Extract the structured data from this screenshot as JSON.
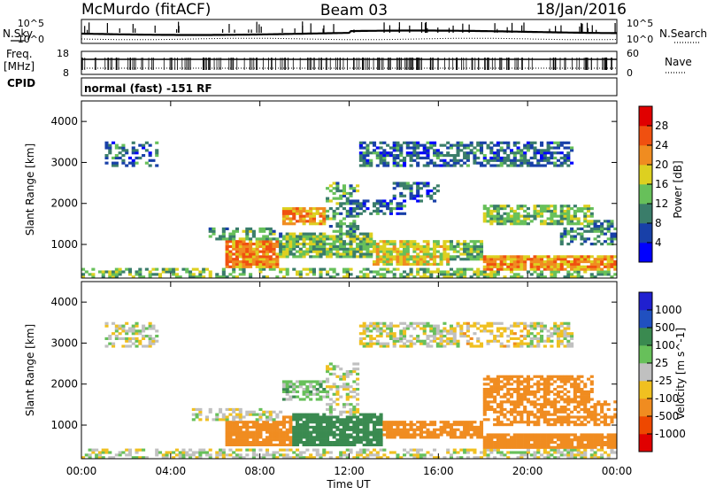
{
  "header": {
    "title_left": "McMurdo (fitACF)",
    "title_center": "Beam 03",
    "title_right": "18/Jan/2016"
  },
  "top_panels": {
    "nsky_label": "N.Sky",
    "nsearch_label": "N.Search",
    "freq_label_line1": "Freq.",
    "freq_label_line2": "[MHz]",
    "nave_label": "Nave",
    "cpid_label": "CPID",
    "cpid_text": "normal (fast) -151 RF",
    "noise_ticks_left": [
      "10^5",
      "10^0"
    ],
    "noise_ticks_right": [
      "10^5",
      "10^0"
    ],
    "freq_ticks": [
      "18",
      "8"
    ],
    "nave_ticks": [
      "60",
      "0"
    ]
  },
  "axes": {
    "xlabel": "Time UT",
    "x_ticks": [
      "00:00",
      "04:00",
      "08:00",
      "12:00",
      "16:00",
      "20:00",
      "00:00"
    ],
    "ylabel": "Slant Range [km]",
    "y_ticks": [
      "1000",
      "2000",
      "3000",
      "4000"
    ]
  },
  "colors": {
    "power": [
      "#0000ff",
      "#1840a8",
      "#3a7d6a",
      "#67c05a",
      "#ddd020",
      "#f08c20",
      "#f05010",
      "#e00000"
    ],
    "velocity": [
      "#e00000",
      "#ee4800",
      "#f08c20",
      "#f0c020",
      "#c0c0c0",
      "#67c05a",
      "#3a8a50",
      "#2050c0",
      "#2020d0"
    ]
  },
  "chart_data": [
    {
      "type": "heatmap",
      "title": "",
      "quantity": "Power",
      "colorbar_label": "Power [dB]",
      "colorbar_ticks": [
        "4",
        "8",
        "12",
        "16",
        "20",
        "24",
        "28"
      ],
      "xlabel": "",
      "ylabel": "Slant Range [km]",
      "x_range_hours": [
        0,
        24
      ],
      "y_range_km": [
        180,
        4500
      ],
      "value_range": [
        0,
        32
      ],
      "regions": [
        {
          "t": [
            0.0,
            24.0
          ],
          "r": [
            180,
            420
          ],
          "v": 14,
          "fill": 0.55
        },
        {
          "t": [
            6.5,
            8.8
          ],
          "r": [
            450,
            1100
          ],
          "v": 23,
          "fill": 0.9
        },
        {
          "t": [
            8.8,
            13.0
          ],
          "r": [
            700,
            1300
          ],
          "v": 14,
          "fill": 0.85
        },
        {
          "t": [
            13.0,
            16.5
          ],
          "r": [
            500,
            1100
          ],
          "v": 18,
          "fill": 0.8
        },
        {
          "t": [
            16.5,
            18.0
          ],
          "r": [
            600,
            1100
          ],
          "v": 14,
          "fill": 0.7
        },
        {
          "t": [
            18.0,
            24.0
          ],
          "r": [
            350,
            750
          ],
          "v": 22,
          "fill": 0.9
        },
        {
          "t": [
            21.5,
            24.0
          ],
          "r": [
            1000,
            1600
          ],
          "v": 10,
          "fill": 0.55
        },
        {
          "t": [
            5.5,
            9.0
          ],
          "r": [
            1100,
            1400
          ],
          "v": 12,
          "fill": 0.55
        },
        {
          "t": [
            9.0,
            11.0
          ],
          "r": [
            1500,
            1900
          ],
          "v": 22,
          "fill": 0.85
        },
        {
          "t": [
            11.0,
            12.5
          ],
          "r": [
            1200,
            2500
          ],
          "v": 12,
          "fill": 0.5
        },
        {
          "t": [
            12.0,
            14.5
          ],
          "r": [
            1700,
            2100
          ],
          "v": 8,
          "fill": 0.55
        },
        {
          "t": [
            18.0,
            23.0
          ],
          "r": [
            1500,
            2000
          ],
          "v": 14,
          "fill": 0.7
        },
        {
          "t": [
            1.0,
            3.5
          ],
          "r": [
            2900,
            3500
          ],
          "v": 8,
          "fill": 0.45
        },
        {
          "t": [
            12.5,
            22.0
          ],
          "r": [
            2900,
            3500
          ],
          "v": 8,
          "fill": 0.6
        },
        {
          "t": [
            14.0,
            16.0
          ],
          "r": [
            2050,
            2500
          ],
          "v": 8,
          "fill": 0.5
        }
      ]
    },
    {
      "type": "heatmap",
      "title": "",
      "quantity": "Velocity",
      "colorbar_label": "Velocity [m s^-1]",
      "colorbar_ticks": [
        "1000",
        "500",
        "100",
        "25",
        "-25",
        "-100",
        "-500",
        "-1000"
      ],
      "xlabel": "Time UT",
      "ylabel": "Slant Range [km]",
      "x_range_hours": [
        0,
        24
      ],
      "y_range_km": [
        180,
        4500
      ],
      "value_range": [
        -1000,
        1000
      ],
      "regions": [
        {
          "t": [
            0.0,
            24.0
          ],
          "r": [
            180,
            420
          ],
          "v": 0,
          "fill": 0.55
        },
        {
          "t": [
            6.5,
            9.5
          ],
          "r": [
            500,
            1200
          ],
          "v": -300,
          "fill": 0.9
        },
        {
          "t": [
            9.5,
            13.5
          ],
          "r": [
            500,
            1300
          ],
          "v": 200,
          "fill": 0.85
        },
        {
          "t": [
            13.5,
            18.0
          ],
          "r": [
            700,
            1100
          ],
          "v": -300,
          "fill": 0.8
        },
        {
          "t": [
            18.0,
            24.0
          ],
          "r": [
            400,
            800
          ],
          "v": -300,
          "fill": 0.9
        },
        {
          "t": [
            18.0,
            24.0
          ],
          "r": [
            1000,
            1600
          ],
          "v": -300,
          "fill": 0.6
        },
        {
          "t": [
            18.0,
            23.0
          ],
          "r": [
            1500,
            2200
          ],
          "v": -300,
          "fill": 0.65
        },
        {
          "t": [
            9.0,
            12.0
          ],
          "r": [
            1600,
            2100
          ],
          "v": 60,
          "fill": 0.7
        },
        {
          "t": [
            11.0,
            12.5
          ],
          "r": [
            1200,
            2500
          ],
          "v": 0,
          "fill": 0.5
        },
        {
          "t": [
            5.0,
            9.0
          ],
          "r": [
            1100,
            1400
          ],
          "v": 0,
          "fill": 0.5
        },
        {
          "t": [
            1.0,
            3.5
          ],
          "r": [
            2900,
            3500
          ],
          "v": 0,
          "fill": 0.45
        },
        {
          "t": [
            12.5,
            22.0
          ],
          "r": [
            2900,
            3500
          ],
          "v": 0,
          "fill": 0.6
        },
        {
          "t": [
            17.0,
            20.0
          ],
          "r": [
            2900,
            3500
          ],
          "v": -50,
          "fill": 0.5
        }
      ]
    }
  ]
}
